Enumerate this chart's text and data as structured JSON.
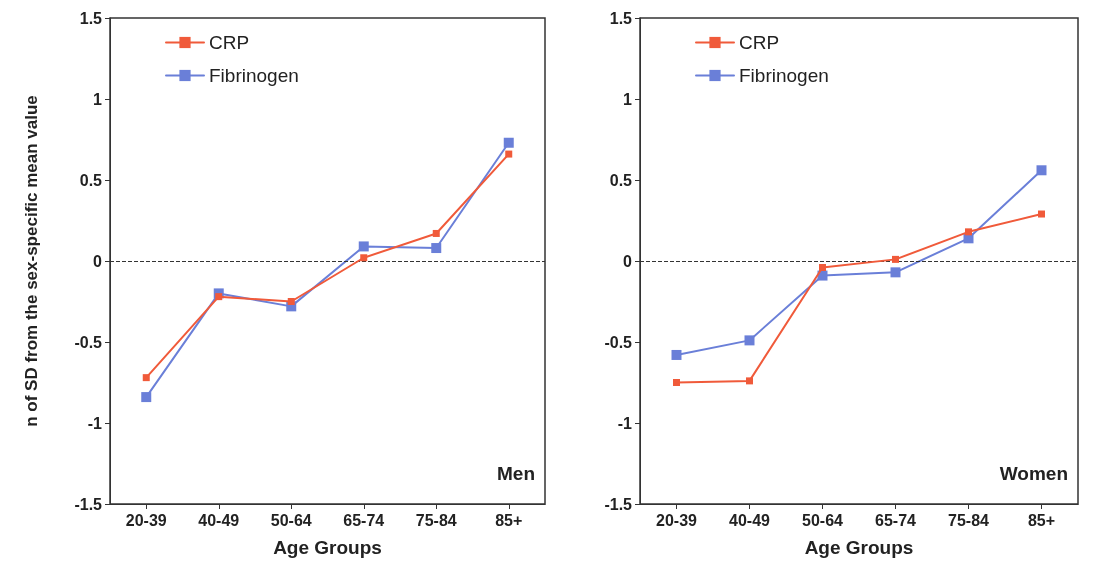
{
  "chart_data": [
    {
      "type": "line",
      "xlabel": "Age Groups",
      "ylabel": "n of SD from the sex-specific mean value",
      "categories": [
        "20-39",
        "40-49",
        "50-64",
        "65-74",
        "75-84",
        "85+"
      ],
      "series": [
        {
          "name": "CRP",
          "color": "#f05a3a",
          "values": [
            -0.72,
            -0.22,
            -0.25,
            0.02,
            0.17,
            0.66
          ]
        },
        {
          "name": "Fibrinogen",
          "color": "#6a7fd8",
          "values": [
            -0.84,
            -0.2,
            -0.28,
            0.09,
            0.08,
            0.73
          ]
        }
      ],
      "ylim": [
        -1.5,
        1.5
      ],
      "yticks": [
        -1.5,
        -1,
        -0.5,
        0,
        0.5,
        1,
        1.5
      ],
      "ref_lines": [
        {
          "axis": "y",
          "value": 0,
          "line_style": "dashed",
          "color": "#333333"
        }
      ],
      "annotations": [
        "Men"
      ],
      "legend": "top left",
      "grid": false,
      "marker": "square",
      "line_style": "solid"
    },
    {
      "type": "line",
      "xlabel": "Age Groups",
      "categories": [
        "20-39",
        "40-49",
        "50-64",
        "65-74",
        "75-84",
        "85+"
      ],
      "series": [
        {
          "name": "CRP",
          "color": "#f05a3a",
          "values": [
            -0.75,
            -0.74,
            -0.04,
            0.01,
            0.18,
            0.29
          ]
        },
        {
          "name": "Fibrinogen",
          "color": "#6a7fd8",
          "values": [
            -0.58,
            -0.49,
            -0.09,
            -0.07,
            0.14,
            0.56
          ]
        }
      ],
      "ylim": [
        -1.5,
        1.5
      ],
      "yticks": [
        -1.5,
        -1,
        -0.5,
        0,
        0.5,
        1,
        1.5
      ],
      "ref_lines": [
        {
          "axis": "y",
          "value": 0,
          "line_style": "dashed",
          "color": "#333333"
        }
      ],
      "annotations": [
        "Women"
      ],
      "legend": "top left",
      "grid": false,
      "marker": "square",
      "line_style": "solid"
    }
  ]
}
